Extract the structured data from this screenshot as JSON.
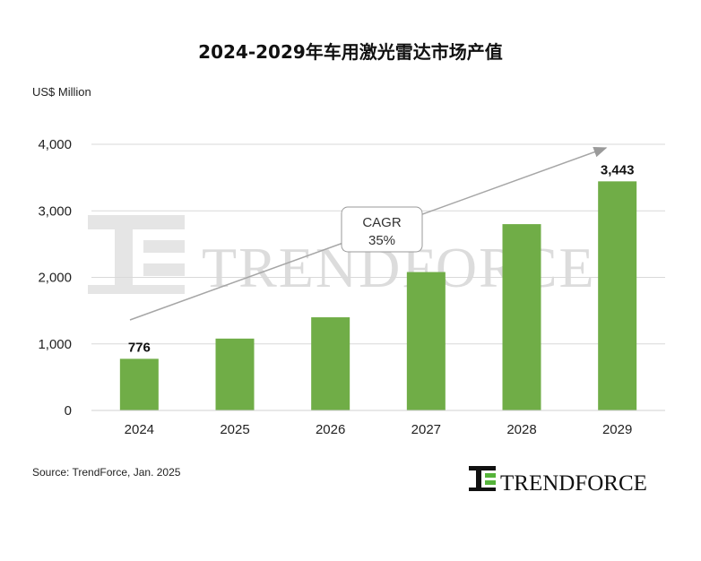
{
  "chart_data": {
    "type": "bar",
    "title": "2024-2029年车用激光雷达市场产值",
    "ylabel": "US$ Million",
    "xlabel": "",
    "categories": [
      "2024",
      "2025",
      "2026",
      "2027",
      "2028",
      "2029"
    ],
    "values": [
      776,
      1080,
      1400,
      2080,
      2800,
      3443
    ],
    "data_labels": [
      {
        "index": 0,
        "text": "776"
      },
      {
        "index": 5,
        "text": "3,443"
      }
    ],
    "ylim": [
      0,
      4000
    ],
    "yticks": [
      {
        "value": 0,
        "label": "0"
      },
      {
        "value": 1000,
        "label": "1,000"
      },
      {
        "value": 2000,
        "label": "2,000"
      },
      {
        "value": 3000,
        "label": "3,000"
      },
      {
        "value": 4000,
        "label": "4,000"
      }
    ],
    "grid": true,
    "bar_color": "#70ad47",
    "annotation": {
      "line1": "CAGR",
      "line2": "35%"
    }
  },
  "source": "Source: TrendForce, Jan. 2025",
  "logo": {
    "text": "TRENDFORCE",
    "brand_color": "#55b33a"
  },
  "watermark": {
    "text": "TRENDFORCE"
  }
}
